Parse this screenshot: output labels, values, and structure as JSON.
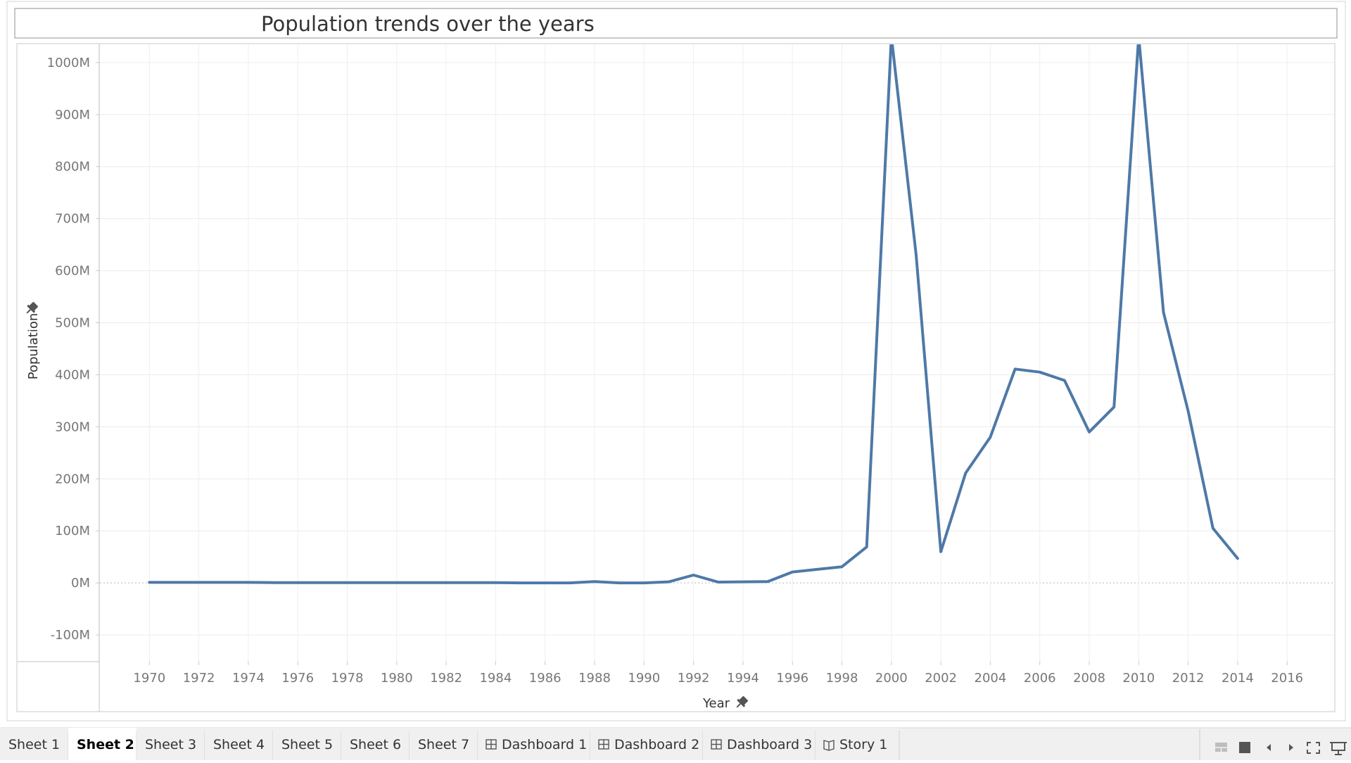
{
  "window": {
    "tabs": [
      {
        "label": "Sheet 1",
        "kind": "sheet",
        "active": false
      },
      {
        "label": "Sheet 2",
        "kind": "sheet",
        "active": true
      },
      {
        "label": "Sheet 3",
        "kind": "sheet",
        "active": false
      },
      {
        "label": "Sheet 4",
        "kind": "sheet",
        "active": false
      },
      {
        "label": "Sheet 5",
        "kind": "sheet",
        "active": false
      },
      {
        "label": "Sheet 6",
        "kind": "sheet",
        "active": false
      },
      {
        "label": "Sheet 7",
        "kind": "sheet",
        "active": false
      },
      {
        "label": "Dashboard 1",
        "kind": "dashboard",
        "active": false
      },
      {
        "label": "Dashboard 2",
        "kind": "dashboard",
        "active": false
      },
      {
        "label": "Dashboard 3",
        "kind": "dashboard",
        "active": false
      },
      {
        "label": "Story 1",
        "kind": "story",
        "active": false
      }
    ],
    "statusbar_icons": [
      "grid-view-icon",
      "single-view-icon",
      "prev-sheet-icon",
      "next-sheet-icon",
      "fullscreen-icon",
      "presentation-icon"
    ]
  },
  "chart_data": {
    "type": "line",
    "title": "Population trends over the years",
    "xlabel": "Year",
    "ylabel": "Population",
    "x": [
      1970,
      1971,
      1972,
      1973,
      1974,
      1975,
      1976,
      1977,
      1978,
      1979,
      1980,
      1981,
      1982,
      1983,
      1984,
      1985,
      1986,
      1987,
      1988,
      1989,
      1990,
      1991,
      1992,
      1993,
      1994,
      1995,
      1996,
      1997,
      1998,
      1999,
      2000,
      2001,
      2002,
      2003,
      2004,
      2005,
      2006,
      2007,
      2008,
      2009,
      2010,
      2011,
      2012,
      2013,
      2014
    ],
    "series": [
      {
        "color": "#4e79a7",
        "values": [
          1,
          1,
          1,
          1,
          1,
          0.5,
          0.5,
          0.5,
          0.5,
          0.5,
          0.5,
          0.5,
          0.5,
          0.5,
          0.5,
          0,
          0,
          0,
          2.5,
          0,
          0,
          2,
          15,
          1.5,
          2,
          2.5,
          21,
          26,
          31,
          69,
          1050,
          630,
          60,
          211,
          280,
          411,
          405,
          389,
          290,
          338,
          1050,
          520,
          330,
          105,
          47
        ]
      }
    ],
    "xlim": [
      1968,
      2017.9
    ],
    "ylim": [
      -150,
      1035
    ],
    "xticks": [
      "1970",
      "1972",
      "1974",
      "1976",
      "1978",
      "1980",
      "1982",
      "1984",
      "1986",
      "1988",
      "1990",
      "1992",
      "1994",
      "1996",
      "1998",
      "2000",
      "2002",
      "2004",
      "2006",
      "2008",
      "2010",
      "2012",
      "2014",
      "2016"
    ],
    "yticks": [
      -100,
      0,
      100,
      200,
      300,
      400,
      500,
      600,
      700,
      800,
      900,
      1000
    ],
    "ytick_labels": [
      "-100M",
      "0M",
      "100M",
      "200M",
      "300M",
      "400M",
      "500M",
      "600M",
      "700M",
      "800M",
      "900M",
      "1000M"
    ],
    "grid": true,
    "legend": "none"
  }
}
